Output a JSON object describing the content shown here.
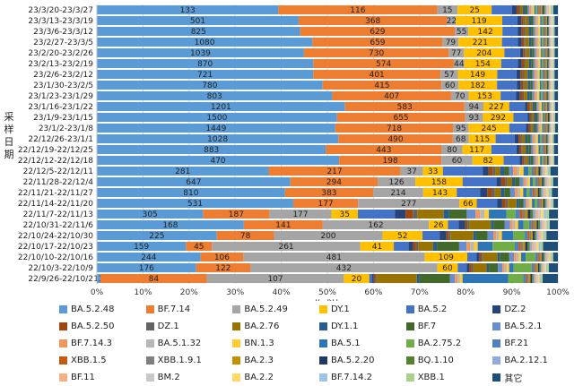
{
  "chart_data": {
    "type": "bar",
    "orientation": "horizontal",
    "stacked": "percent",
    "ylabel": "采样日期",
    "xlabel": "构成比",
    "xlim": [
      0,
      100
    ],
    "xticks": [
      "0%",
      "10%",
      "20%",
      "30%",
      "40%",
      "50%",
      "60%",
      "70%",
      "80%",
      "90%",
      "100%"
    ],
    "grid": true,
    "legend_position": "bottom",
    "categories": [
      "23/3/20-23/3/27",
      "23/3/13-23/3/19",
      "23/3/6-23/3/12",
      "23/2/27-23/3/5",
      "23/2/20-23/2/26",
      "23/2/13-23/2/19",
      "23/2/6-23/2/12",
      "23/1/30-23/2/5",
      "23/1/23-23/1/29",
      "23/1/16-23/1/22",
      "23/1/9-23/1/15",
      "23/1/2-23/1/8",
      "22/12/26-23/1/1",
      "22/12/19-22/12/25",
      "22/12/12-22/12/18",
      "22/12/5-22/12/11",
      "22/11/28-22/12/4",
      "22/11/21-22/11/27",
      "22/11/14-22/11/20",
      "22/11/7-22/11/13",
      "22/10/31-22/11/6",
      "22/10/24-22/10/30",
      "22/10/17-22/10/23",
      "22/10/10-22/10/16",
      "22/10/3-22/10/9",
      "22/9/26-22/10/2"
    ],
    "series": [
      {
        "name": "BA.5.2.48",
        "color": "#5b9bd5",
        "values": [
          40,
          43.5,
          44,
          47,
          46.5,
          47,
          45,
          47.5,
          48.5,
          52,
          53.5,
          51.5,
          48.5,
          47.5,
          54.5,
          34.5,
          41,
          32,
          45.5,
          12,
          27,
          21,
          12,
          22,
          22,
          0.7
        ],
        "labels": [
          "133",
          "501",
          "825",
          "1080",
          "1039",
          "870",
          "721",
          "780",
          "803",
          "1201",
          "1500",
          "1449",
          "1028",
          "883",
          "470",
          "281",
          "647",
          "810",
          "531",
          "305",
          "168",
          "225",
          "159",
          "244",
          "176",
          "13"
        ]
      },
      {
        "name": "BF.7.14",
        "color": "#ed7d31",
        "values": [
          35,
          32,
          33.5,
          28.5,
          32.5,
          30.5,
          26.5,
          25,
          24.5,
          25,
          28.5,
          25.5,
          23,
          24,
          23,
          26.5,
          18.5,
          15,
          15,
          7.5,
          14.5,
          10,
          3.5,
          9,
          12,
          21
        ],
        "labels": [
          "116",
          "368",
          "629",
          "659",
          "730",
          "574",
          "401",
          "415",
          "407",
          "583",
          "655",
          "718",
          "490",
          "443",
          "198",
          "217",
          "294",
          "383",
          "177",
          "187",
          "141",
          "78",
          "45",
          "106",
          "122",
          "84"
        ]
      },
      {
        "name": "BA.5.2.49",
        "color": "#a5a5a5",
        "values": [
          4.5,
          1.9,
          2.9,
          3.4,
          3.4,
          2.3,
          3.6,
          3.6,
          3.6,
          4,
          4,
          3.3,
          3.2,
          4.3,
          7,
          4.5,
          8,
          8.5,
          23.5,
          7,
          19.5,
          19,
          20,
          38.5,
          41.5,
          27
        ],
        "labels": [
          "15",
          "22",
          "55",
          "79",
          "77",
          "44",
          "57",
          "60",
          "70",
          "94",
          "93",
          "95",
          "68",
          "80",
          "60",
          "37",
          "126",
          "214",
          "277",
          "177",
          "162",
          "200",
          "261",
          "481",
          "432",
          "107"
        ]
      },
      {
        "name": "DY.1",
        "color": "#ffc000",
        "values": [
          7.5,
          10,
          7.4,
          9.5,
          9.1,
          8,
          8.2,
          8.1,
          6.6,
          5.4,
          6.8,
          8.8,
          5.4,
          6,
          7,
          4,
          10,
          5.7,
          4,
          3,
          3.5,
          7,
          4.5,
          9,
          4.5,
          5
        ],
        "labels": [
          "25",
          "119",
          "142",
          "221",
          "204",
          "154",
          "149",
          "182",
          "153",
          "227",
          "292",
          "245",
          "115",
          "117",
          "82",
          "33",
          "158",
          "143",
          "66",
          "35",
          "26",
          "52",
          "41",
          "109",
          "60",
          "20"
        ]
      },
      {
        "name": "BA.5.2",
        "color": "#4472c4",
        "values": [
          4.5,
          3.3,
          3.3,
          3.5,
          3.5,
          3.6,
          4,
          4.2,
          3.2,
          3.3,
          3.2,
          3.6,
          3.8,
          5.2,
          3.6,
          8,
          7.2,
          4,
          4.7,
          4.2,
          2,
          3,
          2,
          2,
          2,
          0.6
        ],
        "labels": []
      },
      {
        "name": "DZ.2",
        "color": "#264478",
        "values": [
          1,
          0.8,
          0.8,
          0.8,
          0.7,
          0.8,
          0.8,
          0.8,
          0.8,
          0.5,
          0.4,
          0.5,
          0.8,
          0.6,
          0.6,
          1.2,
          1,
          1.2,
          1.2,
          1.2,
          1.2,
          1.2,
          0.6,
          0.6,
          0.6,
          0.3
        ],
        "labels": []
      },
      {
        "name": "BA.5.2.50",
        "color": "#9e480e",
        "values": [
          0.5,
          0.5,
          0.5,
          0.5,
          0.4,
          0.5,
          0.5,
          0.5,
          0.5,
          0.4,
          0.3,
          0.4,
          0.4,
          0.4,
          0.4,
          0.8,
          0.8,
          0.8,
          0.8,
          0.8,
          0.4,
          0.4,
          0.4,
          0.5,
          0.5,
          0.3
        ],
        "labels": []
      },
      {
        "name": "DZ.1",
        "color": "#636363",
        "values": [
          0.3,
          0.3,
          0.3,
          0.3,
          0.3,
          0.3,
          0.3,
          0.3,
          0.3,
          0.2,
          0.2,
          0.2,
          0.3,
          0.3,
          0.3,
          0.5,
          0.5,
          0.5,
          0.5,
          0.5,
          0.3,
          0.3,
          0.3,
          0.3,
          0.3,
          0.2
        ],
        "labels": []
      },
      {
        "name": "BA.2.76",
        "color": "#997300",
        "values": [
          0.6,
          0.8,
          0.8,
          0.8,
          0.8,
          0.8,
          0.7,
          0.7,
          0.7,
          0.5,
          0.5,
          0.5,
          0.6,
          0.7,
          0.7,
          1,
          1,
          1,
          2,
          3,
          4,
          4,
          2,
          3,
          3,
          8
        ],
        "labels": []
      },
      {
        "name": "DY.1.1",
        "color": "#255e91",
        "values": [
          0.5,
          0.5,
          0.5,
          0.5,
          0.5,
          0.5,
          0.5,
          0.5,
          0.5,
          0.4,
          0.4,
          0.4,
          0.5,
          0.5,
          0.5,
          0.8,
          0.6,
          0.6,
          0.6,
          0.6,
          0.5,
          0.5,
          0.5,
          0.5,
          0.5,
          0.5
        ],
        "labels": []
      },
      {
        "name": "BF.7",
        "color": "#43682b",
        "values": [
          0.5,
          0.5,
          0.5,
          0.5,
          0.5,
          0.5,
          0.5,
          0.5,
          0.5,
          0.4,
          0.4,
          0.4,
          0.6,
          0.6,
          0.6,
          1,
          1,
          1,
          1,
          2,
          2,
          2,
          3,
          2,
          2,
          6
        ],
        "labels": []
      },
      {
        "name": "BA.5.2.1",
        "color": "#698ed0",
        "values": [
          0.4,
          0.4,
          0.4,
          0.4,
          0.4,
          0.4,
          0.4,
          0.4,
          0.4,
          0.3,
          0.3,
          0.3,
          0.4,
          0.4,
          0.4,
          0.8,
          0.8,
          0.8,
          0.6,
          1,
          1,
          1,
          1,
          1,
          1,
          1
        ],
        "labels": []
      },
      {
        "name": "BF.7.14.3",
        "color": "#f1975a",
        "values": [
          0.4,
          0.4,
          0.4,
          0.4,
          0.4,
          0.4,
          0.4,
          0.4,
          0.4,
          0.3,
          0.3,
          0.3,
          0.4,
          0.4,
          0.4,
          0.8,
          0.5,
          0.5,
          0.5,
          0.5,
          0.5,
          0.5,
          0.5,
          0.5,
          0.5,
          0.5
        ],
        "labels": []
      },
      {
        "name": "BA.5.1.32",
        "color": "#b7b7b7",
        "values": [
          0.3,
          0.3,
          0.3,
          0.3,
          0.3,
          0.3,
          0.3,
          0.3,
          0.3,
          0.2,
          0.2,
          0.2,
          0.3,
          0.3,
          0.3,
          0.5,
          0.4,
          0.4,
          0.4,
          0.5,
          0.5,
          0.5,
          0.5,
          0.5,
          0.5,
          0.5
        ],
        "labels": []
      },
      {
        "name": "BN.1.3",
        "color": "#ffcd33",
        "values": [
          0.4,
          0.4,
          0.4,
          0.4,
          0.4,
          0.4,
          0.4,
          0.4,
          0.4,
          0.3,
          0.3,
          0.3,
          0.4,
          0.4,
          0.4,
          0.8,
          0.5,
          0.5,
          0.5,
          0.5,
          0.5,
          0.5,
          0.5,
          0.5,
          0.5,
          0.5
        ],
        "labels": []
      },
      {
        "name": "BA.5.1",
        "color": "#2e75b6",
        "values": [
          0.3,
          0.3,
          0.3,
          0.3,
          0.3,
          0.3,
          0.3,
          0.3,
          0.3,
          0.2,
          0.2,
          0.2,
          0.4,
          0.4,
          0.4,
          1,
          0.6,
          0.6,
          0.6,
          2,
          1,
          2,
          2,
          1,
          1,
          9
        ],
        "labels": []
      },
      {
        "name": "BA.2.75.2",
        "color": "#70ad47",
        "values": [
          0.3,
          0.3,
          0.3,
          0.3,
          0.3,
          0.3,
          0.3,
          0.3,
          0.3,
          0.2,
          0.2,
          0.2,
          0.3,
          0.3,
          0.3,
          0.6,
          0.5,
          0.5,
          0.6,
          1,
          1,
          2,
          3,
          2,
          4,
          3
        ],
        "labels": []
      },
      {
        "name": "BF.21",
        "color": "#4f81bd",
        "values": [
          0.3,
          0.3,
          0.3,
          0.3,
          0.3,
          0.3,
          0.3,
          0.3,
          0.3,
          0.2,
          0.2,
          0.2,
          0.3,
          0.3,
          0.3,
          0.5,
          0.5,
          0.5,
          0.5,
          0.5,
          0.5,
          0.5,
          0.5,
          0.5,
          0.5,
          0.5
        ],
        "labels": []
      },
      {
        "name": "XBB.1.5",
        "color": "#c55a11",
        "values": [
          0.3,
          0.2,
          0.2,
          0.2,
          0.2,
          0.2,
          0.2,
          0.2,
          0.2,
          0.2,
          0.2,
          0.2,
          0.2,
          0.2,
          0.2,
          0.3,
          0.3,
          0.3,
          0.3,
          0.3,
          0.3,
          0.3,
          0.3,
          0.3,
          0.3,
          0.3
        ],
        "labels": []
      },
      {
        "name": "XBB.1.9.1",
        "color": "#7f7f7f",
        "values": [
          0.3,
          0.2,
          0.2,
          0.2,
          0.2,
          0.2,
          0.2,
          0.2,
          0.2,
          0.2,
          0.2,
          0.2,
          0.2,
          0.2,
          0.2,
          0.3,
          0.3,
          0.3,
          0.3,
          0.3,
          0.3,
          0.3,
          0.3,
          0.3,
          0.3,
          0.3
        ],
        "labels": []
      },
      {
        "name": "BA.2.3",
        "color": "#bf9000",
        "values": [
          0.3,
          0.2,
          0.2,
          0.2,
          0.2,
          0.2,
          0.2,
          0.2,
          0.2,
          0.2,
          0.2,
          0.2,
          0.2,
          0.2,
          0.2,
          0.3,
          0.3,
          0.3,
          0.3,
          0.3,
          0.3,
          0.3,
          0.3,
          0.3,
          0.3,
          0.3
        ],
        "labels": []
      },
      {
        "name": "BA.5.2.20",
        "color": "#203864",
        "values": [
          0.3,
          0.2,
          0.2,
          0.2,
          0.2,
          0.2,
          0.2,
          0.2,
          0.2,
          0.2,
          0.2,
          0.2,
          0.2,
          0.2,
          0.2,
          0.3,
          0.3,
          0.3,
          0.3,
          0.3,
          0.3,
          0.3,
          0.3,
          0.3,
          0.3,
          0.3
        ],
        "labels": []
      },
      {
        "name": "BQ.1.10",
        "color": "#548235",
        "values": [
          0.3,
          0.2,
          0.2,
          0.2,
          0.2,
          0.2,
          0.2,
          0.2,
          0.2,
          0.2,
          0.2,
          0.2,
          0.2,
          0.2,
          0.2,
          0.3,
          0.3,
          0.3,
          0.3,
          0.3,
          0.3,
          0.3,
          0.3,
          0.3,
          0.3,
          0.3
        ],
        "labels": []
      },
      {
        "name": "BA.2.12.1",
        "color": "#8faadc",
        "values": [
          0.3,
          0.2,
          0.2,
          0.2,
          0.2,
          0.2,
          0.2,
          0.2,
          0.2,
          0.2,
          0.2,
          0.2,
          0.2,
          0.2,
          0.2,
          0.3,
          0.3,
          0.3,
          0.3,
          0.3,
          0.3,
          0.3,
          0.3,
          0.3,
          0.3,
          0.3
        ],
        "labels": []
      },
      {
        "name": "BF.11",
        "color": "#f4b183",
        "values": [
          0.3,
          0.2,
          0.2,
          0.2,
          0.2,
          0.2,
          0.2,
          0.2,
          0.2,
          0.2,
          0.2,
          0.2,
          0.2,
          0.2,
          0.2,
          0.3,
          0.3,
          0.3,
          0.3,
          0.3,
          0.3,
          0.3,
          0.3,
          0.3,
          0.3,
          0.3
        ],
        "labels": []
      },
      {
        "name": "BM.2",
        "color": "#c9c9c9",
        "values": [
          0.3,
          0.2,
          0.2,
          0.2,
          0.2,
          0.2,
          0.2,
          0.2,
          0.2,
          0.2,
          0.2,
          0.2,
          0.2,
          0.2,
          0.2,
          0.3,
          0.3,
          0.3,
          0.3,
          0.3,
          0.3,
          0.3,
          0.3,
          0.3,
          0.3,
          0.3
        ],
        "labels": []
      },
      {
        "name": "BA.2.2",
        "color": "#ffd966",
        "values": [
          0.3,
          0.2,
          0.2,
          0.2,
          0.2,
          0.2,
          0.2,
          0.2,
          0.2,
          0.2,
          0.2,
          0.2,
          0.2,
          0.2,
          0.2,
          0.3,
          0.3,
          0.3,
          0.3,
          0.3,
          0.3,
          0.3,
          0.3,
          0.3,
          0.3,
          0.3
        ],
        "labels": []
      },
      {
        "name": "BF.7.14.2",
        "color": "#9dc3e6",
        "values": [
          0.3,
          0.2,
          0.2,
          0.2,
          0.2,
          0.2,
          0.2,
          0.2,
          0.2,
          0.2,
          0.2,
          0.2,
          0.2,
          0.2,
          0.2,
          0.3,
          0.3,
          0.3,
          0.3,
          0.3,
          0.3,
          0.3,
          0.3,
          0.3,
          0.3,
          0.3
        ],
        "labels": []
      },
      {
        "name": "XBB.1",
        "color": "#a9d18e",
        "values": [
          0.3,
          0.2,
          0.2,
          0.2,
          0.2,
          0.2,
          0.2,
          0.2,
          0.2,
          0.2,
          0.2,
          0.2,
          0.2,
          0.2,
          0.2,
          0.3,
          0.3,
          0.3,
          0.3,
          0.3,
          0.3,
          0.3,
          0.3,
          0.3,
          0.3,
          0.3
        ],
        "labels": []
      },
      {
        "name": "其它",
        "color": "#1f4e79",
        "values": [
          1,
          0.7,
          0.7,
          0.7,
          0.7,
          0.7,
          0.7,
          0.7,
          0.7,
          0.6,
          0.6,
          0.6,
          0.8,
          0.8,
          0.8,
          1.5,
          1,
          1,
          1,
          1,
          1.5,
          2,
          2,
          1,
          2,
          3
        ],
        "labels": []
      }
    ]
  }
}
